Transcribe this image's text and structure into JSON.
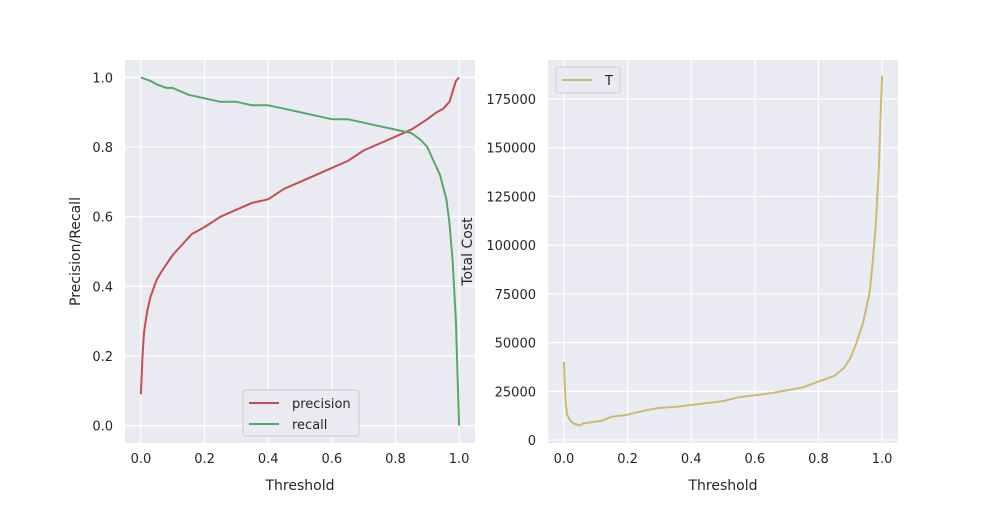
{
  "chart_data": [
    {
      "type": "line",
      "title": "",
      "xlabel": "Threshold",
      "ylabel": "Precision/Recall",
      "xlim": [
        -0.05,
        1.05
      ],
      "ylim": [
        -0.05,
        1.05
      ],
      "xticks": [
        0.0,
        0.2,
        0.4,
        0.6,
        0.8,
        1.0
      ],
      "xtick_labels": [
        "0.0",
        "0.2",
        "0.4",
        "0.6",
        "0.8",
        "1.0"
      ],
      "yticks": [
        0.0,
        0.2,
        0.4,
        0.6,
        0.8,
        1.0
      ],
      "ytick_labels": [
        "0.0",
        "0.2",
        "0.4",
        "0.6",
        "0.8",
        "1.0"
      ],
      "grid": true,
      "legend_position": "bottom-center",
      "series": [
        {
          "name": "precision",
          "color": "#c44e52",
          "x": [
            0.0,
            0.005,
            0.01,
            0.02,
            0.03,
            0.05,
            0.07,
            0.1,
            0.13,
            0.16,
            0.2,
            0.25,
            0.3,
            0.35,
            0.4,
            0.45,
            0.5,
            0.55,
            0.6,
            0.65,
            0.7,
            0.75,
            0.8,
            0.85,
            0.9,
            0.93,
            0.95,
            0.97,
            0.98,
            0.99,
            1.0
          ],
          "y": [
            0.09,
            0.2,
            0.27,
            0.33,
            0.37,
            0.42,
            0.45,
            0.49,
            0.52,
            0.55,
            0.57,
            0.6,
            0.62,
            0.64,
            0.65,
            0.68,
            0.7,
            0.72,
            0.74,
            0.76,
            0.79,
            0.81,
            0.83,
            0.85,
            0.88,
            0.9,
            0.91,
            0.93,
            0.96,
            0.99,
            1.0
          ]
        },
        {
          "name": "recall",
          "color": "#55a868",
          "x": [
            0.0,
            0.03,
            0.05,
            0.08,
            0.1,
            0.15,
            0.2,
            0.25,
            0.3,
            0.35,
            0.4,
            0.45,
            0.5,
            0.55,
            0.6,
            0.65,
            0.7,
            0.75,
            0.8,
            0.85,
            0.88,
            0.9,
            0.92,
            0.94,
            0.96,
            0.97,
            0.98,
            0.99,
            0.995,
            1.0
          ],
          "y": [
            1.0,
            0.99,
            0.98,
            0.97,
            0.97,
            0.95,
            0.94,
            0.93,
            0.93,
            0.92,
            0.92,
            0.91,
            0.9,
            0.89,
            0.88,
            0.88,
            0.87,
            0.86,
            0.85,
            0.84,
            0.82,
            0.8,
            0.76,
            0.72,
            0.65,
            0.58,
            0.47,
            0.3,
            0.15,
            0.0
          ]
        }
      ]
    },
    {
      "type": "line",
      "title": "",
      "xlabel": "Threshold",
      "ylabel": "Total Cost",
      "xlim": [
        -0.05,
        1.05
      ],
      "ylim": [
        -1500,
        195000
      ],
      "xticks": [
        0.0,
        0.2,
        0.4,
        0.6,
        0.8,
        1.0
      ],
      "xtick_labels": [
        "0.0",
        "0.2",
        "0.4",
        "0.6",
        "0.8",
        "1.0"
      ],
      "yticks": [
        0,
        25000,
        50000,
        75000,
        100000,
        125000,
        150000,
        175000
      ],
      "ytick_labels": [
        "0",
        "25000",
        "50000",
        "75000",
        "100000",
        "125000",
        "150000",
        "175000"
      ],
      "grid": true,
      "legend_position": "top-left",
      "series": [
        {
          "name": "T",
          "color": "#ccb974",
          "x": [
            0.0,
            0.005,
            0.01,
            0.02,
            0.03,
            0.04,
            0.05,
            0.06,
            0.08,
            0.1,
            0.12,
            0.15,
            0.2,
            0.25,
            0.3,
            0.35,
            0.4,
            0.45,
            0.5,
            0.55,
            0.6,
            0.65,
            0.7,
            0.75,
            0.8,
            0.85,
            0.88,
            0.9,
            0.92,
            0.94,
            0.96,
            0.97,
            0.98,
            0.99,
            0.995,
            1.0
          ],
          "y": [
            40000,
            20000,
            13000,
            10000,
            8500,
            8000,
            7500,
            8500,
            9000,
            9500,
            10000,
            12000,
            13000,
            15000,
            16500,
            17000,
            18000,
            19000,
            20000,
            22000,
            23000,
            24000,
            25500,
            27000,
            30000,
            33000,
            37000,
            42000,
            50000,
            60000,
            75000,
            90000,
            110000,
            140000,
            165000,
            187000
          ]
        }
      ]
    }
  ]
}
